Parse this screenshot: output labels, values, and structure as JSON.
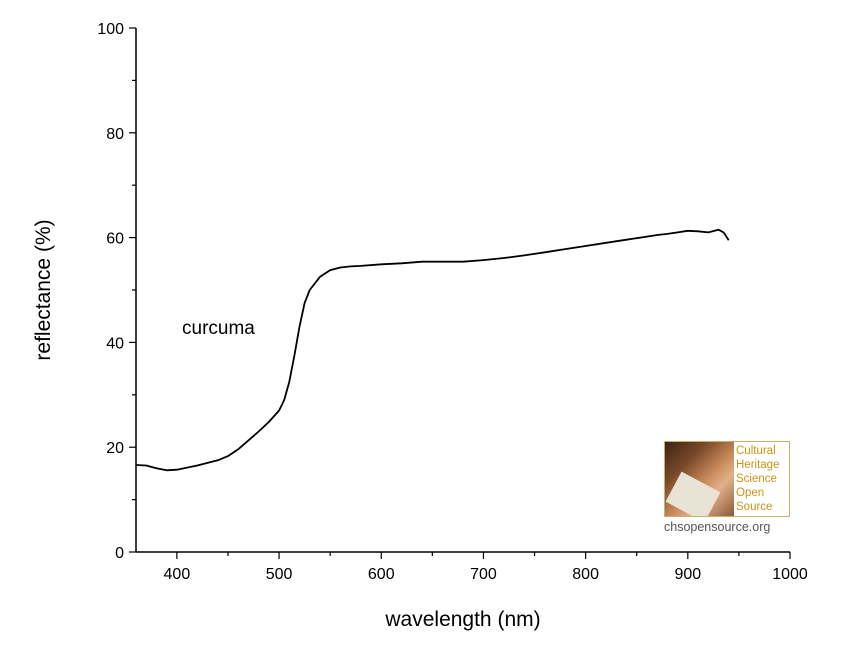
{
  "chart_data": {
    "type": "line",
    "xlabel": "wavelength (nm)",
    "ylabel": "reflectance (%)",
    "xlim": [
      360,
      1000
    ],
    "ylim": [
      0,
      100
    ],
    "x_ticks": [
      400,
      500,
      600,
      700,
      800,
      900,
      1000
    ],
    "y_ticks": [
      0,
      20,
      40,
      60,
      80,
      100
    ],
    "grid": false,
    "annotation": "curcuma",
    "series": [
      {
        "color": "#000000",
        "x": [
          360,
          370,
          380,
          390,
          400,
          410,
          420,
          430,
          440,
          450,
          460,
          470,
          480,
          490,
          500,
          505,
          510,
          515,
          520,
          525,
          530,
          540,
          550,
          560,
          570,
          580,
          600,
          620,
          640,
          660,
          680,
          700,
          720,
          740,
          760,
          780,
          800,
          820,
          840,
          860,
          870,
          880,
          890,
          900,
          910,
          920,
          930,
          935,
          940
        ],
        "y": [
          16.6,
          16.5,
          16.0,
          15.6,
          15.7,
          16.1,
          16.5,
          17.0,
          17.5,
          18.3,
          19.6,
          21.3,
          23.0,
          24.8,
          27.0,
          29.0,
          32.5,
          37.5,
          43.0,
          47.5,
          50.0,
          52.5,
          53.8,
          54.3,
          54.5,
          54.6,
          54.9,
          55.1,
          55.4,
          55.4,
          55.4,
          55.7,
          56.1,
          56.6,
          57.2,
          57.8,
          58.4,
          59.0,
          59.6,
          60.2,
          60.5,
          60.7,
          61.0,
          61.3,
          61.2,
          61.0,
          61.5,
          61.0,
          59.5
        ]
      }
    ]
  },
  "logo": {
    "lines": [
      "Cultural",
      "Heritage",
      "Science",
      "Open",
      "Source"
    ],
    "url": "chsopensource.org"
  }
}
